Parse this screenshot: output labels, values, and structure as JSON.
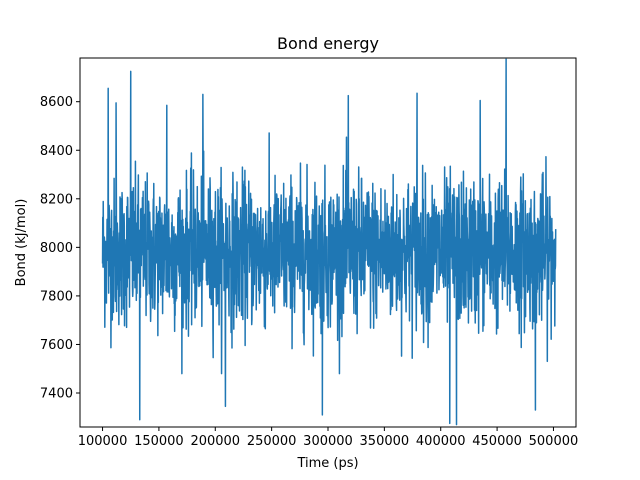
{
  "chart_data": {
    "type": "line",
    "title": "Bond energy",
    "xlabel": "Time (ps)",
    "ylabel": "Bond (kJ/mol)",
    "xlim": [
      80000,
      520000
    ],
    "ylim": [
      7260,
      8780
    ],
    "xticks": [
      100000,
      150000,
      200000,
      250000,
      300000,
      350000,
      400000,
      450000,
      500000
    ],
    "xtick_labels": [
      "100000",
      "150000",
      "200000",
      "250000",
      "300000",
      "350000",
      "400000",
      "450000",
      "500000"
    ],
    "yticks": [
      7400,
      7600,
      7800,
      8000,
      8200,
      8400,
      8600
    ],
    "ytick_labels": [
      "7400",
      "7600",
      "7800",
      "8000",
      "8200",
      "8400",
      "8600"
    ],
    "grid": false,
    "series": [
      {
        "color": "#1f77b4",
        "x_range": [
          100000,
          502000
        ],
        "mean": 7980,
        "std": 150,
        "n_points": 2000,
        "spikes": [
          {
            "x": 105000,
            "y": 8655
          },
          {
            "x": 112000,
            "y": 8595
          },
          {
            "x": 125000,
            "y": 8725
          },
          {
            "x": 133000,
            "y": 7290
          },
          {
            "x": 157000,
            "y": 8585
          },
          {
            "x": 189000,
            "y": 8630
          },
          {
            "x": 209000,
            "y": 7345
          },
          {
            "x": 295000,
            "y": 7310
          },
          {
            "x": 318000,
            "y": 8625
          },
          {
            "x": 379000,
            "y": 8635
          },
          {
            "x": 408000,
            "y": 7275
          },
          {
            "x": 414000,
            "y": 7270
          },
          {
            "x": 435000,
            "y": 8605
          },
          {
            "x": 458000,
            "y": 8775
          },
          {
            "x": 484000,
            "y": 7330
          }
        ]
      }
    ]
  }
}
